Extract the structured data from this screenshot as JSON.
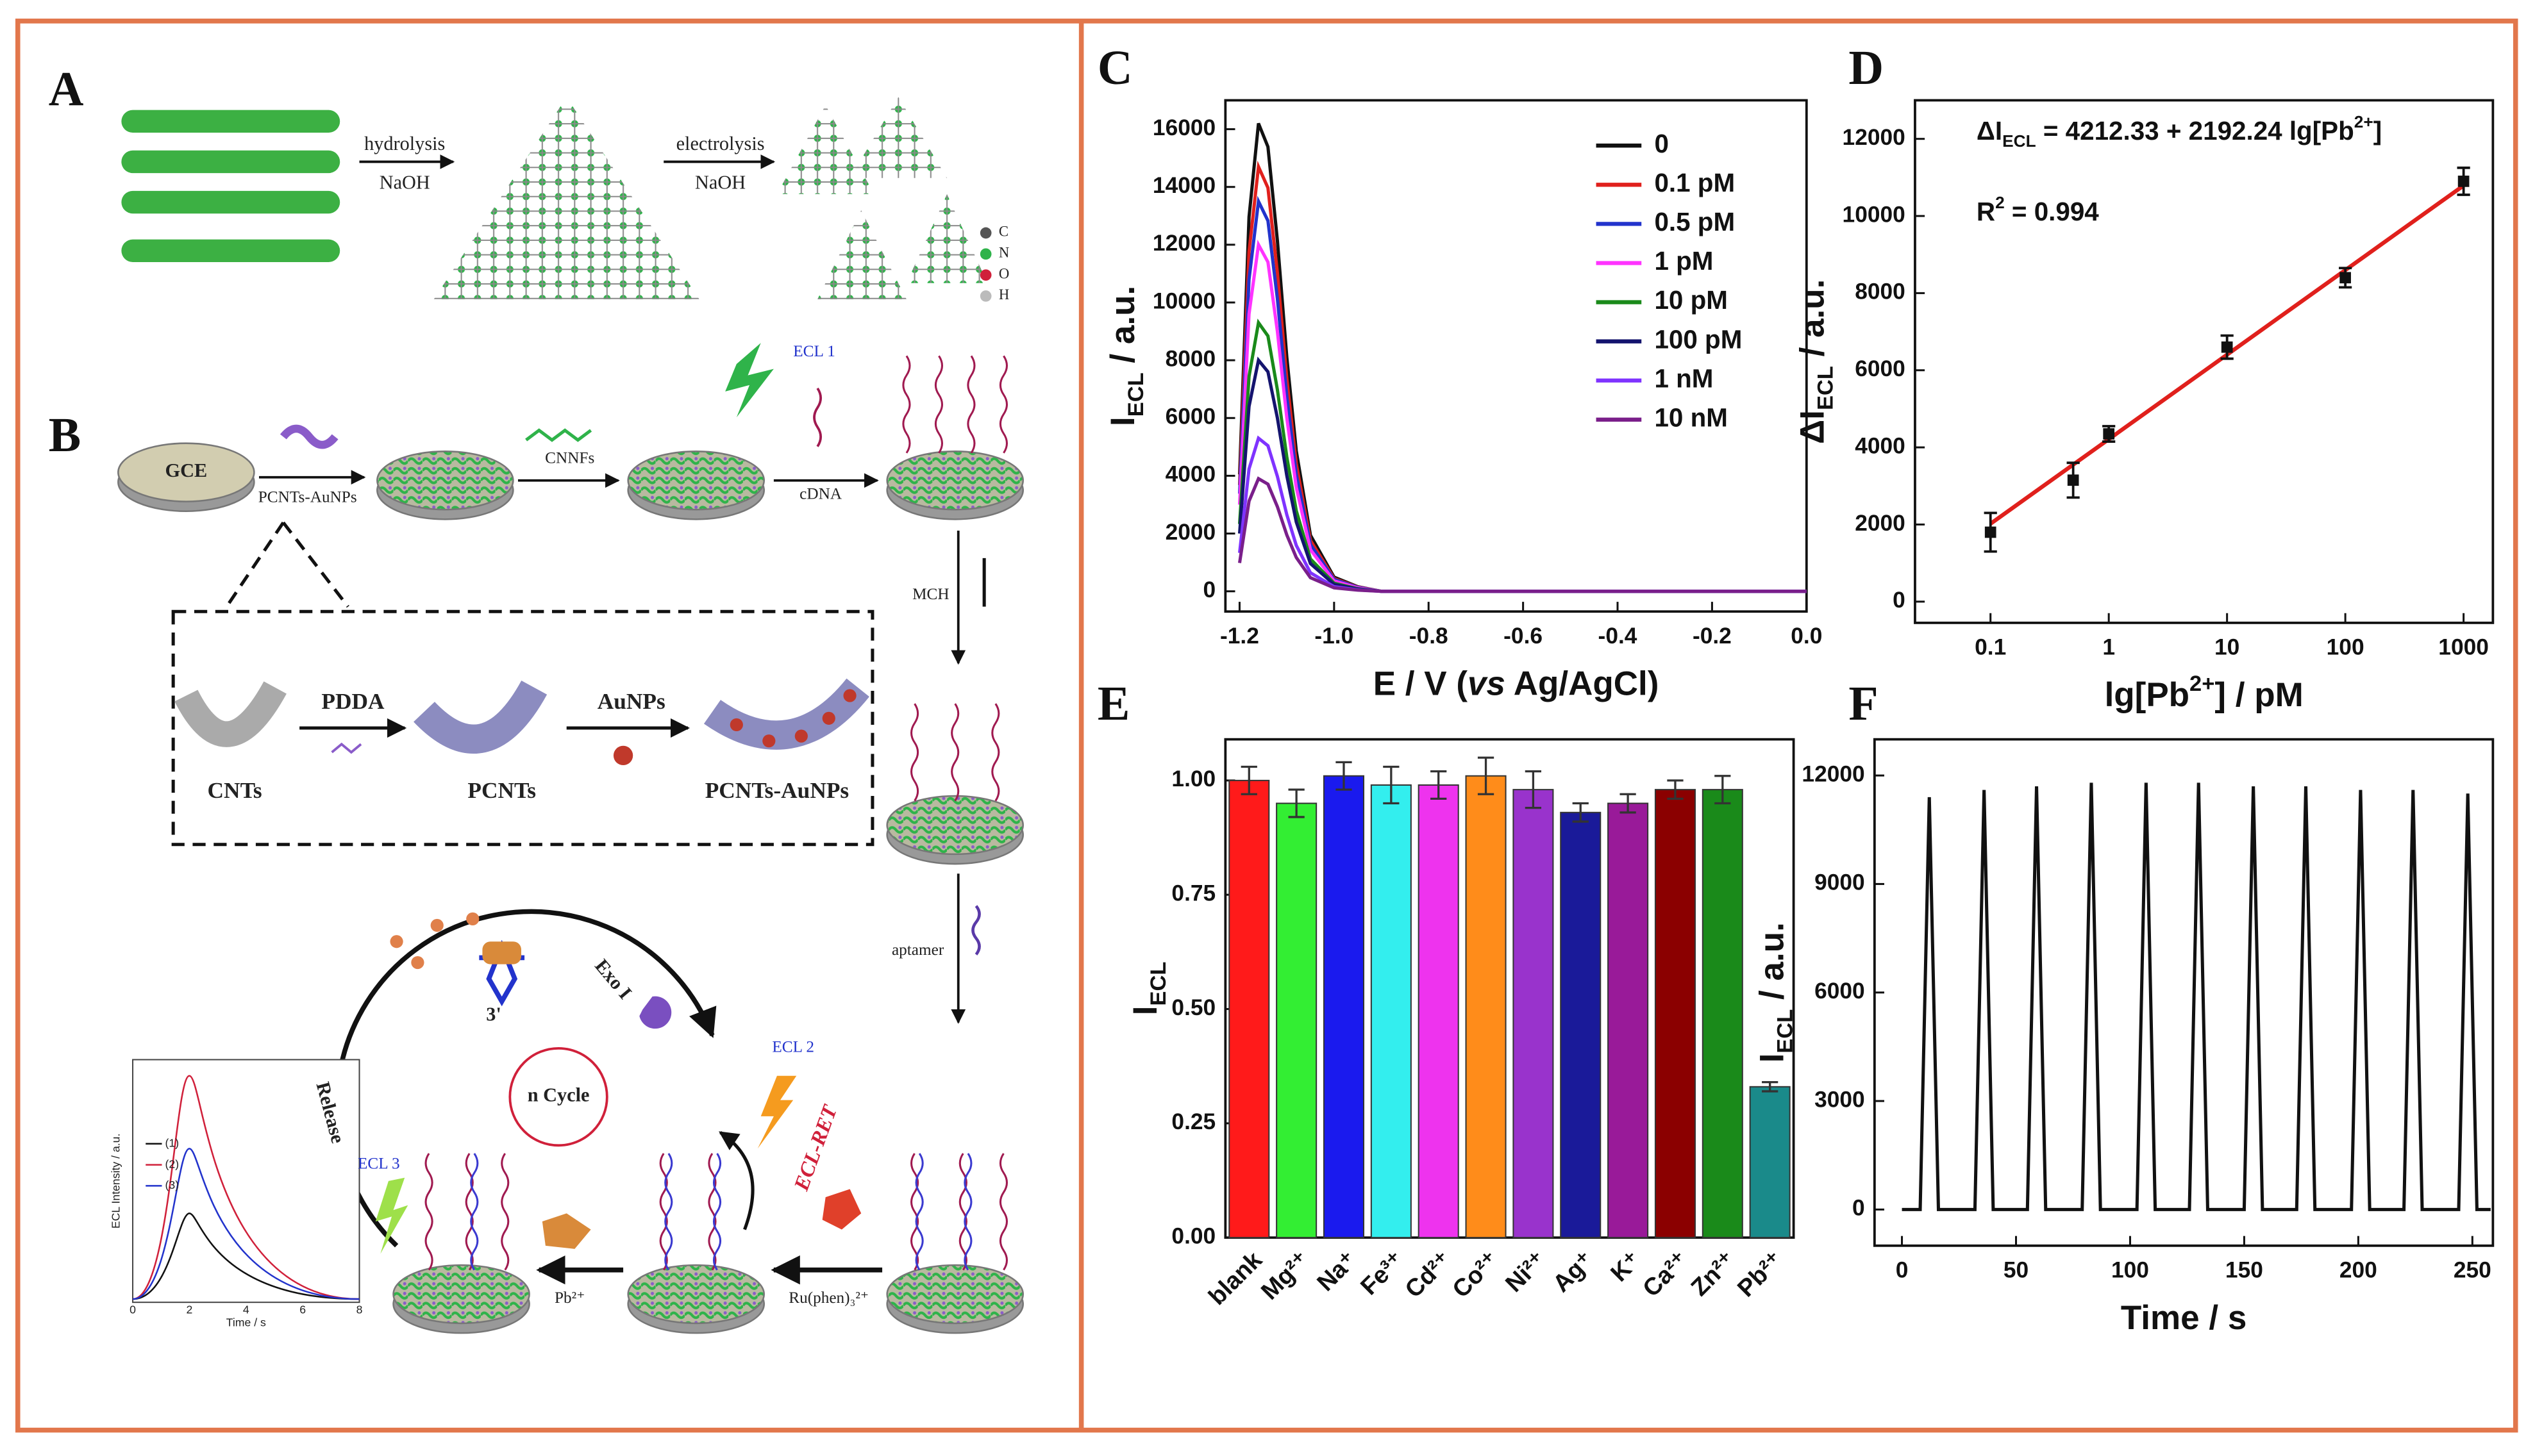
{
  "panels": [
    "A",
    "B",
    "C",
    "D",
    "E",
    "F"
  ],
  "schematic": {
    "texts": [
      "hydrolysis",
      "NaOH",
      "electrolysis",
      "NaOH",
      "C",
      "N",
      "O",
      "H",
      "GCE",
      "PCNTs-AuNPs",
      "CNNFs",
      "ECL 1",
      "cDNA",
      "MCH",
      "CNTs",
      "PDDA",
      "PCNTs",
      "AuNPs",
      "PCNTs-AuNPs",
      "aptamer",
      "Exo I",
      "3'",
      "n Cycle",
      "Release",
      "ECL 3",
      "ECL 2",
      "ECL-RET",
      "Pb²⁺",
      "Ru(phen)₃²⁺",
      "ECL Intensity / a.u.",
      "Time / s",
      "(1)",
      "(2)",
      "(3)",
      "0",
      "2",
      "4",
      "6",
      "8"
    ]
  },
  "chart_data": [
    {
      "type": "line",
      "xlabel": [
        "E / V (",
        "vs",
        " Ag/AgCl)"
      ],
      "ylabel": [
        "I",
        "ECL",
        " / a.u."
      ],
      "legend": "upper right",
      "x": [
        -1.2,
        -1.18,
        -1.16,
        -1.14,
        -1.12,
        -1.1,
        -1.08,
        -1.05,
        -1.0,
        -0.95,
        -0.9,
        -0.6,
        -0.3,
        0.0
      ],
      "series": [
        {
          "name": "0",
          "color": "#111111",
          "values": [
            4050,
            12960,
            16200,
            15390,
            12150,
            8100,
            4860,
            1940,
            490,
            160,
            0,
            0,
            0,
            0
          ]
        },
        {
          "name": "0.1 pM",
          "color": "#e0201c",
          "values": [
            3680,
            11760,
            14700,
            13970,
            11030,
            7350,
            4410,
            1760,
            440,
            150,
            0,
            0,
            0,
            0
          ]
        },
        {
          "name": "0.5 pM",
          "color": "#2233cc",
          "values": [
            3380,
            10800,
            13500,
            12830,
            10130,
            6750,
            4050,
            1620,
            410,
            140,
            0,
            0,
            0,
            0
          ]
        },
        {
          "name": "1 pM",
          "color": "#ff33ff",
          "values": [
            3000,
            9600,
            12000,
            11400,
            9000,
            6000,
            3600,
            1440,
            360,
            120,
            0,
            0,
            0,
            0
          ]
        },
        {
          "name": "10 pM",
          "color": "#1a8a1a",
          "values": [
            2330,
            7440,
            9300,
            8840,
            6980,
            4650,
            2790,
            1120,
            280,
            90,
            0,
            0,
            0,
            0
          ]
        },
        {
          "name": "100 pM",
          "color": "#14146e",
          "values": [
            2000,
            6400,
            8000,
            7600,
            6000,
            4000,
            2400,
            960,
            240,
            80,
            0,
            0,
            0,
            0
          ]
        },
        {
          "name": "1 nM",
          "color": "#7f33ff",
          "values": [
            1330,
            4240,
            5300,
            5040,
            3980,
            2650,
            1590,
            640,
            160,
            50,
            0,
            0,
            0,
            0
          ]
        },
        {
          "name": "10 nM",
          "color": "#7a1f8a",
          "values": [
            980,
            3120,
            3900,
            3710,
            2930,
            1950,
            1170,
            470,
            120,
            40,
            0,
            0,
            0,
            0
          ]
        }
      ],
      "xlim": [
        -1.23,
        0.0
      ],
      "ylim": [
        -700,
        17000
      ],
      "xticks": [
        -1.2,
        {
          "value": -1,
          "label": "-1.0"
        },
        -0.8,
        -0.6,
        -0.4,
        -0.2,
        {
          "value": 0,
          "label": "0.0"
        }
      ],
      "yticks": [
        0,
        2000,
        4000,
        6000,
        8000,
        10000,
        12000,
        14000,
        16000
      ]
    },
    {
      "type": "scatter",
      "xlog": true,
      "xlabel": [
        "lg[Pb",
        "2+",
        "] / pM"
      ],
      "ylabel": [
        "ΔI",
        "ECL",
        " / a.u."
      ],
      "equation": [
        "ΔI",
        "ECL",
        " = 4212.33 + 2192.24 lg[Pb",
        "2+",
        "]"
      ],
      "r2": [
        "R",
        "2",
        " = 0.994"
      ],
      "x": [
        0.1,
        0.5,
        1,
        10,
        100,
        1000
      ],
      "values": [
        1800,
        3150,
        4350,
        6600,
        8400,
        10900
      ],
      "errors": [
        500,
        450,
        200,
        300,
        250,
        350
      ],
      "color": "#111111",
      "fit": {
        "color": "#e0201c",
        "x": [
          0.1,
          1000
        ],
        "values": [
          2020.09,
          10789.05
        ]
      },
      "xlim": [
        0.023,
        1770
      ],
      "ylim": [
        -550,
        13000
      ],
      "xticks": [
        0.1,
        1,
        10,
        100,
        1000
      ],
      "yticks": [
        0,
        2000,
        4000,
        6000,
        8000,
        10000,
        12000
      ]
    },
    {
      "type": "bar",
      "ylabel": [
        "I",
        "ECL"
      ],
      "categories": [
        "blank",
        "Mg²⁺",
        "Na⁺",
        "Fe³⁺",
        "Cd²⁺",
        "Co²⁺",
        "Ni²⁺",
        "Ag⁺",
        "K⁺",
        "Ca²⁺",
        "Zn²⁺",
        "Pb²⁺"
      ],
      "values": [
        1.0,
        0.95,
        1.01,
        0.99,
        0.99,
        1.01,
        0.98,
        0.93,
        0.95,
        0.98,
        0.98,
        0.33
      ],
      "errors": [
        0.03,
        0.03,
        0.03,
        0.04,
        0.03,
        0.04,
        0.04,
        0.02,
        0.02,
        0.02,
        0.03,
        0.01
      ],
      "colors": [
        "#ff1a1a",
        "#33ee33",
        "#1a1aee",
        "#33eeee",
        "#ee33ee",
        "#ff8c1a",
        "#9933cc",
        "#1a1a99",
        "#991a99",
        "#8b0000",
        "#1a8a1a",
        "#1a8a8a"
      ],
      "ylim": [
        0,
        1.09
      ],
      "yticks": [
        {
          "value": 0,
          "label": "0.00"
        },
        {
          "value": 0.25,
          "label": "0.25"
        },
        {
          "value": 0.5,
          "label": "0.50"
        },
        {
          "value": 0.75,
          "label": "0.75"
        },
        {
          "value": 1,
          "label": "1.00"
        }
      ]
    },
    {
      "type": "line",
      "xlabel": "Time / s",
      "ylabel": [
        "I",
        "ECL",
        " / a.u."
      ],
      "color": "#111111",
      "x": [
        0,
        8,
        12,
        16,
        32,
        36,
        40,
        55,
        59,
        63,
        79,
        83,
        87,
        103,
        107,
        111,
        126,
        130,
        134,
        150,
        154,
        158,
        173,
        177,
        181,
        197,
        201,
        205,
        220,
        224,
        228,
        244,
        248,
        252,
        258
      ],
      "values": [
        0,
        0,
        11400,
        0,
        0,
        11600,
        0,
        0,
        11700,
        0,
        0,
        11800,
        0,
        0,
        11800,
        0,
        0,
        11800,
        0,
        0,
        11700,
        0,
        0,
        11700,
        0,
        0,
        11600,
        0,
        0,
        11600,
        0,
        0,
        11500,
        0,
        0
      ],
      "xlim": [
        -12,
        259
      ],
      "ylim": [
        -1000,
        13000
      ],
      "xticks": [
        0,
        50,
        100,
        150,
        200,
        250
      ],
      "yticks": [
        0,
        3000,
        6000,
        9000,
        12000
      ]
    }
  ]
}
